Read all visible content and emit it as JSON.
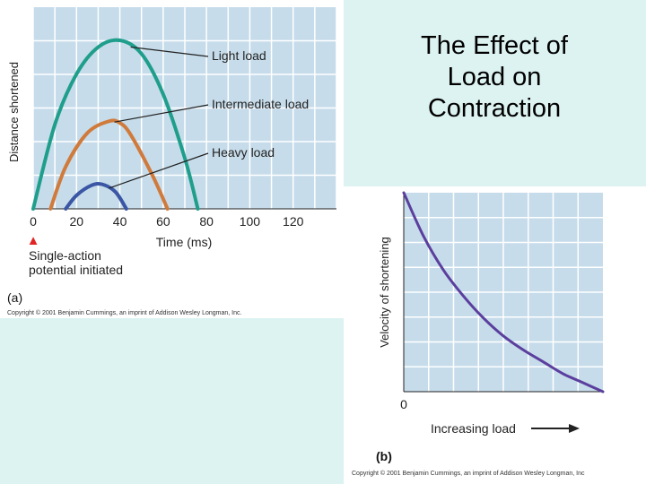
{
  "slide_title": [
    "The Effect of",
    "Load on",
    "Contraction"
  ],
  "colors": {
    "plot_bg": "#c6dcea",
    "grid": "#ffffff",
    "light": "#1f9e8c",
    "intermediate": "#d07a3c",
    "heavy": "#3a56a4",
    "curve_b": "#5b3f9e",
    "arrow": "#e02424",
    "slide_bg": "#dcf3f1"
  },
  "panel_a": {
    "label": "(a)",
    "copyright": "Copyright © 2001 Benjamin Cummings, an imprint of Addison Wesley Longman, Inc.",
    "stimulus_note": [
      "Single-action",
      "potential initiated"
    ]
  },
  "panel_b": {
    "label": "(b)",
    "copyright": "Copyright © 2001 Benjamin Cummings, an imprint of Addison Wesley Longman, Inc"
  },
  "chart_data": [
    {
      "type": "line",
      "xlabel": "Time (ms)",
      "ylabel": "Distance shortened",
      "xlim": [
        0,
        140
      ],
      "ylim": [
        0,
        100
      ],
      "x_ticks": [
        0,
        20,
        40,
        60,
        80,
        100,
        120
      ],
      "grid": true,
      "series": [
        {
          "name": "Light load",
          "x": [
            0,
            10,
            20,
            30,
            40,
            50,
            60,
            70,
            76
          ],
          "y": [
            0,
            50,
            80,
            96,
            100,
            92,
            68,
            30,
            0
          ]
        },
        {
          "name": "Intermediate load",
          "x": [
            8,
            15,
            25,
            35,
            40,
            45,
            55,
            62
          ],
          "y": [
            0,
            25,
            45,
            52,
            51,
            44,
            20,
            0
          ]
        },
        {
          "name": "Heavy load",
          "x": [
            15,
            20,
            27,
            32,
            38,
            43
          ],
          "y": [
            0,
            8,
            14,
            14.5,
            10,
            0
          ]
        }
      ]
    },
    {
      "type": "line",
      "xlabel": "Increasing load",
      "ylabel": "Velocity of shortening",
      "x_tick_labels": [
        "0"
      ],
      "xlim": [
        0,
        10
      ],
      "ylim": [
        0,
        10
      ],
      "grid": true,
      "series": [
        {
          "x": [
            0,
            1,
            2,
            3,
            4,
            5,
            6,
            7,
            8,
            9,
            10
          ],
          "y": [
            10,
            7.8,
            6.1,
            4.8,
            3.7,
            2.8,
            2.1,
            1.5,
            0.9,
            0.45,
            0
          ]
        }
      ]
    }
  ]
}
